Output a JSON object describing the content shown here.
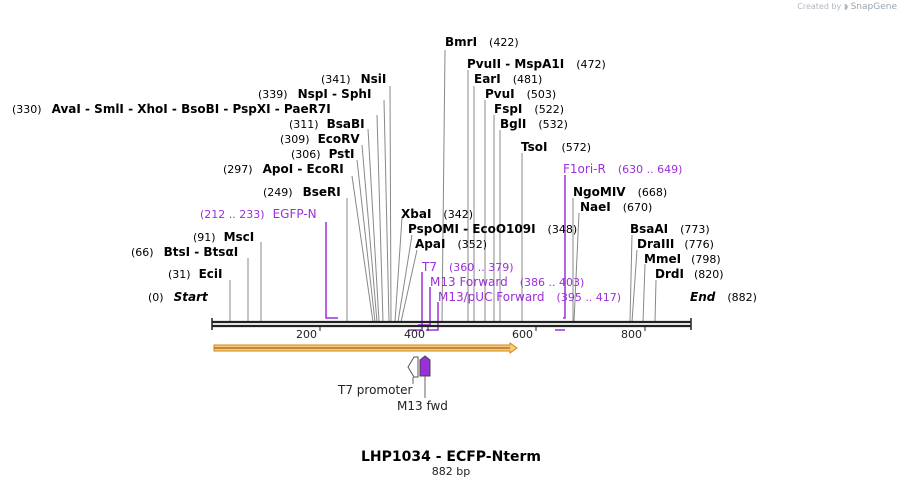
{
  "brand": {
    "created_by": "Created by",
    "product": "SnapGene"
  },
  "title": "LHP1034 - ECFP-Nterm",
  "subtitle": "882 bp",
  "sequence_length": 882,
  "colors": {
    "primer": "#9b30d9",
    "enzyme": "#000000",
    "feature_orange": "#f5a623",
    "line": "#888888"
  },
  "ruler": {
    "ticks": [
      "200",
      "400",
      "600",
      "800"
    ]
  },
  "enzymes": [
    {
      "id": "start",
      "label": "Start",
      "pos": "(0)",
      "italic": true
    },
    {
      "id": "end",
      "label": "End",
      "pos": "(882)",
      "italic": true
    },
    {
      "id": "ecii",
      "label": "EciI",
      "pos": "(31)"
    },
    {
      "id": "btsi",
      "label": "BtsI - BtsαI",
      "pos": "(66)"
    },
    {
      "id": "msci",
      "label": "MscI",
      "pos": "(91)"
    },
    {
      "id": "bseri",
      "label": "BseRI",
      "pos": "(249)"
    },
    {
      "id": "apoi",
      "label": "ApoI - EcoRI",
      "pos": "(297)"
    },
    {
      "id": "psti",
      "label": "PstI",
      "pos": "(306)"
    },
    {
      "id": "ecorv",
      "label": "EcoRV",
      "pos": "(309)"
    },
    {
      "id": "bsabi",
      "label": "BsaBI",
      "pos": "(311)"
    },
    {
      "id": "avai",
      "label": "AvaI - SmlI - XhoI - BsoBI - PspXI - PaeR7I",
      "pos": "(330)"
    },
    {
      "id": "nspi",
      "label": "NspI - SphI",
      "pos": "(339)"
    },
    {
      "id": "nsii",
      "label": "NsiI",
      "pos": "(341)"
    },
    {
      "id": "xbai",
      "label": "XbaI",
      "pos": "(342)"
    },
    {
      "id": "apai",
      "label": "ApaI",
      "pos": "(352)"
    },
    {
      "id": "pspomi",
      "label": "PspOMI - EcoO109I",
      "pos": "(348)"
    },
    {
      "id": "bmri",
      "label": "BmrI",
      "pos": "(422)"
    },
    {
      "id": "pvuii",
      "label": "PvuII - MspA1I",
      "pos": "(472)"
    },
    {
      "id": "eari",
      "label": "EarI",
      "pos": "(481)"
    },
    {
      "id": "pvui",
      "label": "PvuI",
      "pos": "(503)"
    },
    {
      "id": "fspi",
      "label": "FspI",
      "pos": "(522)"
    },
    {
      "id": "bgli",
      "label": "BglI",
      "pos": "(532)"
    },
    {
      "id": "tsoi",
      "label": "TsoI",
      "pos": "(572)"
    },
    {
      "id": "ngomiv",
      "label": "NgoMIV",
      "pos": "(668)"
    },
    {
      "id": "naei",
      "label": "NaeI",
      "pos": "(670)"
    },
    {
      "id": "bsaai",
      "label": "BsaAI",
      "pos": "(773)"
    },
    {
      "id": "draiii",
      "label": "DraIII",
      "pos": "(776)"
    },
    {
      "id": "mmei",
      "label": "MmeI",
      "pos": "(798)"
    },
    {
      "id": "drdi",
      "label": "DrdI",
      "pos": "(820)"
    }
  ],
  "primers": [
    {
      "id": "egfp",
      "label": "EGFP-N",
      "range": "(212 .. 233)"
    },
    {
      "id": "f1ori",
      "label": "F1ori-R",
      "range": "(630 .. 649)"
    },
    {
      "id": "t7",
      "label": "T7",
      "range": "(360 .. 379)"
    },
    {
      "id": "m13fwd",
      "label": "M13 Forward",
      "range": "(386 .. 403)"
    },
    {
      "id": "m13puc",
      "label": "M13/pUC Forward",
      "range": "(395 .. 417)"
    }
  ],
  "features": [
    {
      "id": "t7prom",
      "label": "T7 promoter"
    },
    {
      "id": "m13fwd_feat",
      "label": "M13 fwd"
    }
  ]
}
